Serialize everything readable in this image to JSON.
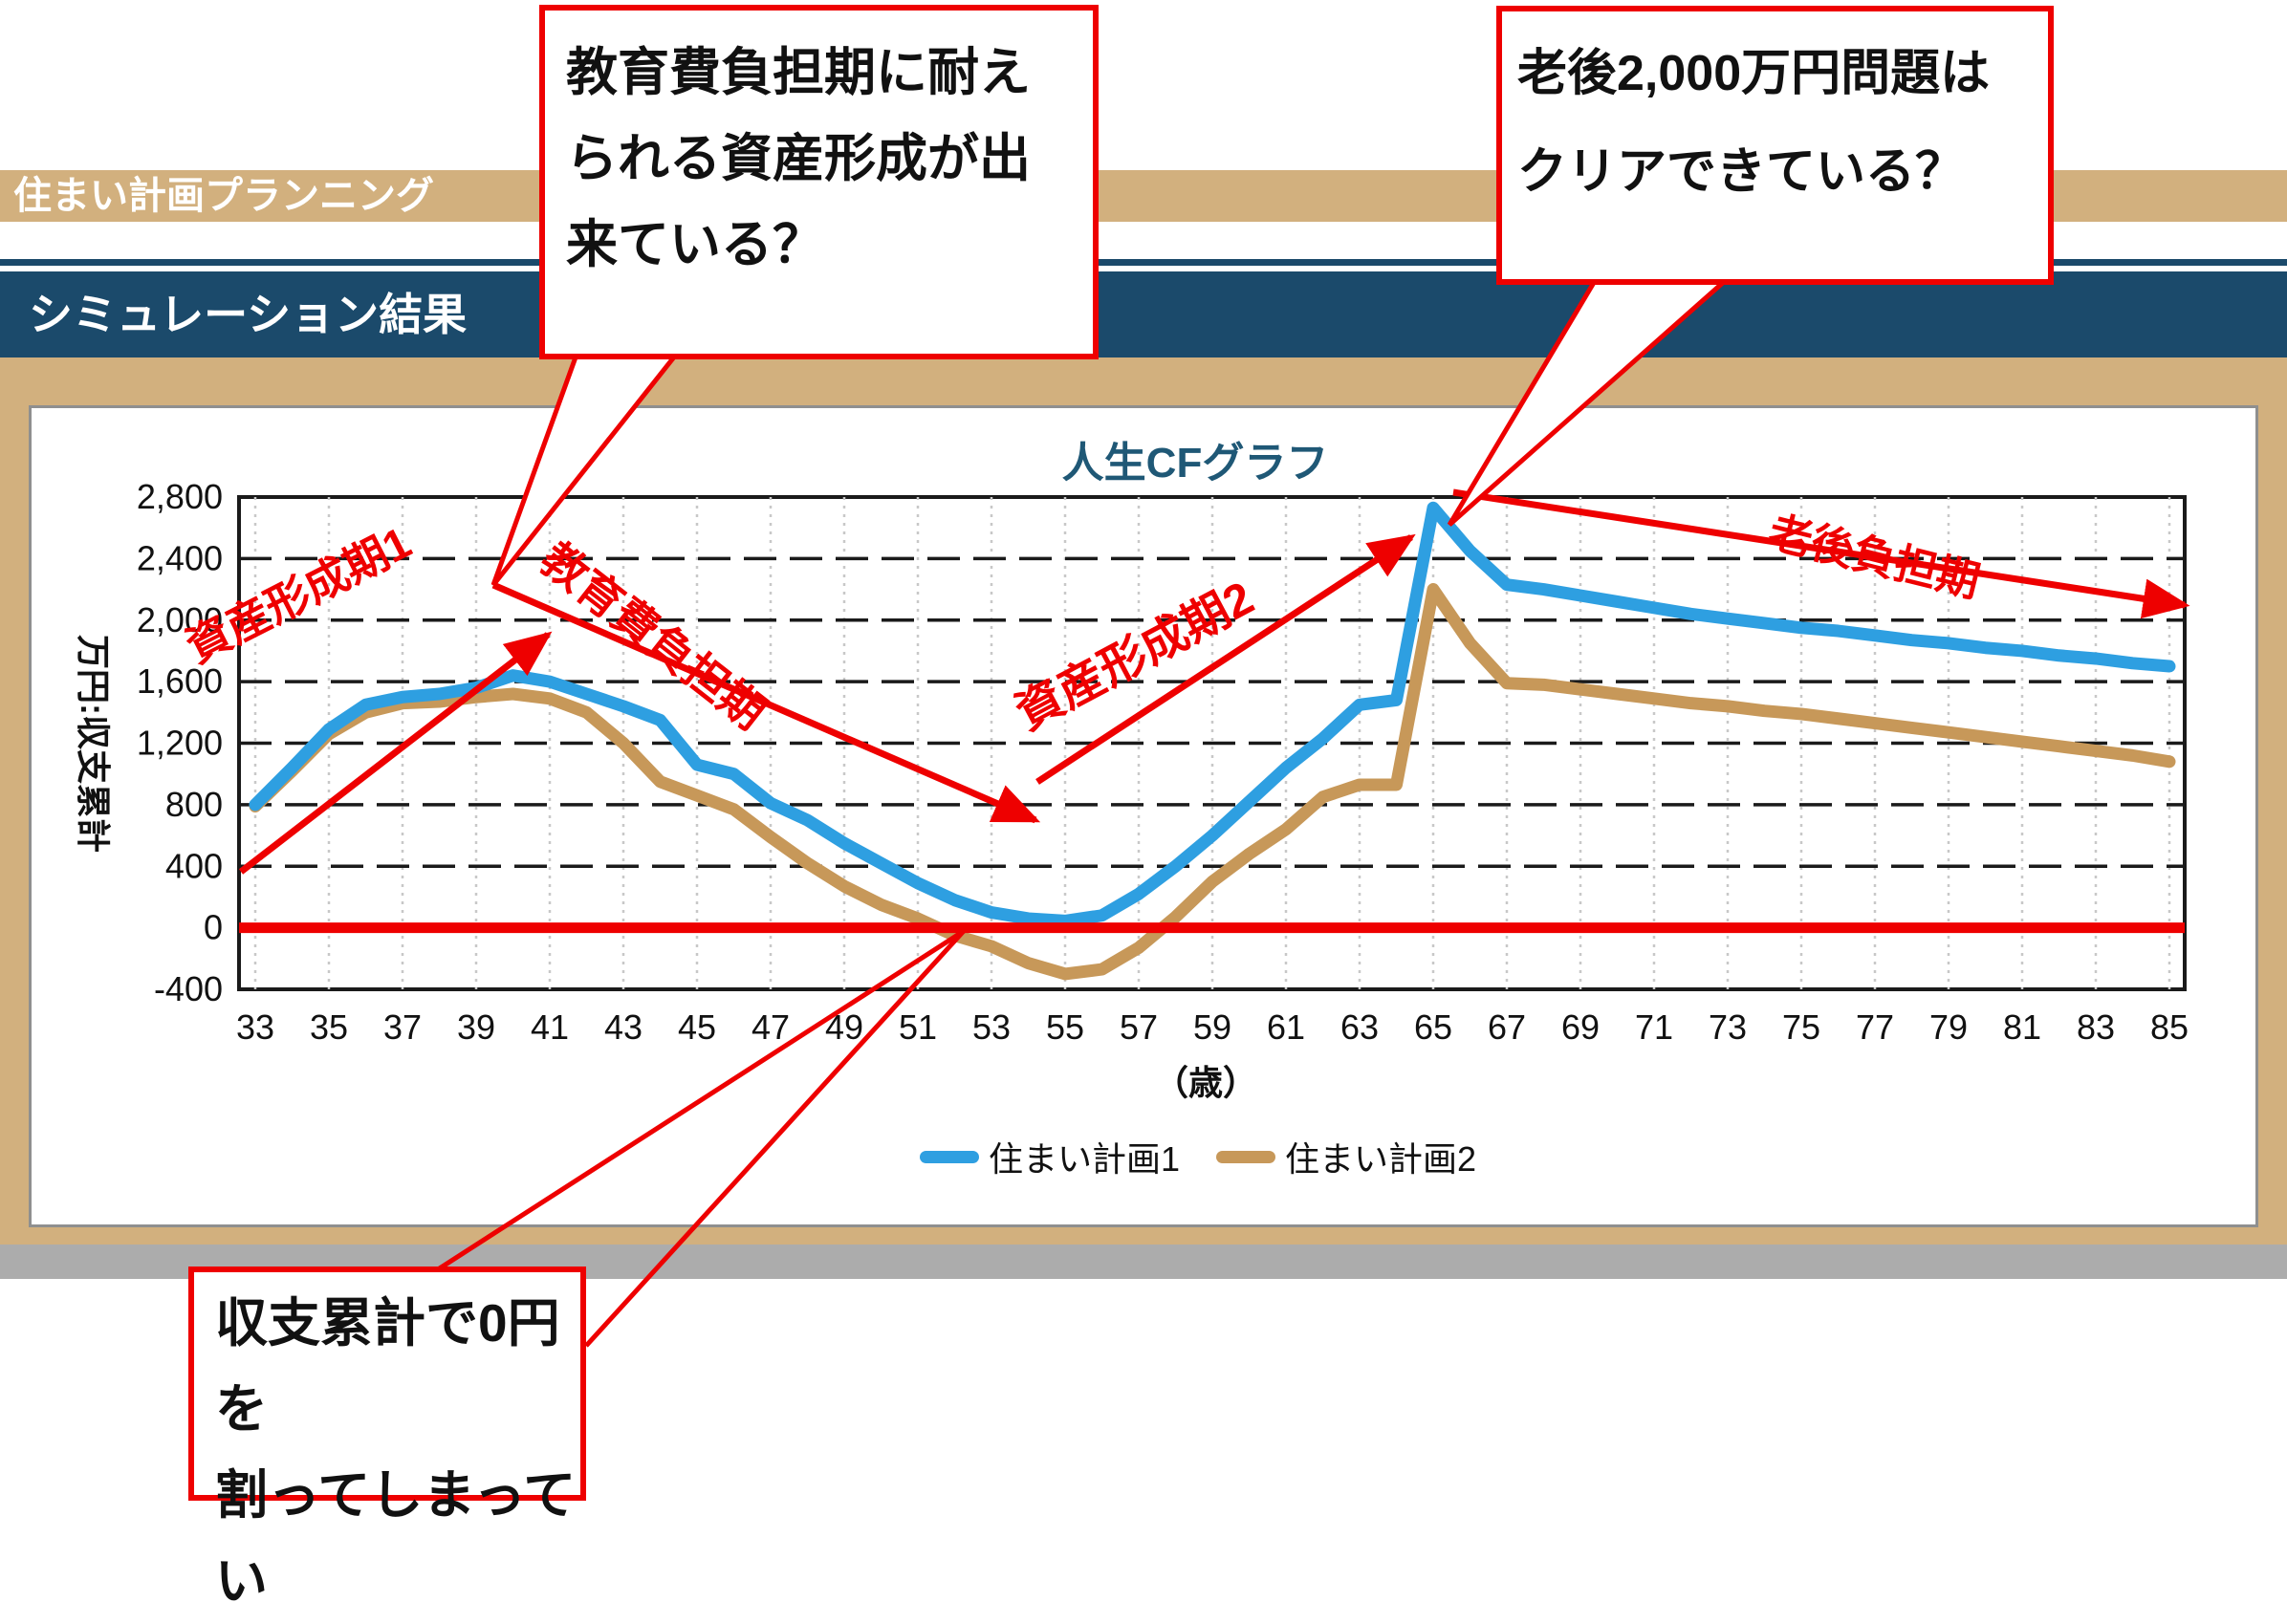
{
  "header": {
    "app_title": "住まい計画プランニング",
    "section_title": "シミュレーション結果"
  },
  "colors": {
    "tan": "#d2b07e",
    "navy": "#1b4a6b",
    "red": "#ee0000",
    "plan1_blue": "#2e9fe1",
    "plan2_tan": "#c79859",
    "grid_black": "#1a1a1a",
    "grid_dotted": "#c8c8c8",
    "card_border": "#8f8f8f",
    "title_blue": "#1f5876"
  },
  "callouts": {
    "education": {
      "lines": [
        "教育費負担期に耐え",
        "られる資産形成が出",
        "来ている？"
      ]
    },
    "retirement": {
      "lines": [
        "老後2,000万円問題は",
        "クリアできている？"
      ]
    },
    "zero": {
      "lines": [
        "収支累計で0円を",
        "割ってしまってい"
      ]
    }
  },
  "chart_data": {
    "type": "line",
    "title": "人生CFグラフ",
    "ylabel": "万円:収支累計",
    "xlabel": "（歳）",
    "ylim": [
      -400,
      2800
    ],
    "yticks": [
      2800,
      2400,
      2000,
      1600,
      1200,
      800,
      400,
      0,
      -400
    ],
    "y_tick_labels": [
      "2,800",
      "2,400",
      "2,000",
      "1,600",
      "1,200",
      "800",
      "400",
      "0",
      "-400"
    ],
    "x_start_age": 33,
    "x_end_age": 85,
    "x_tick_labels": [
      "33",
      "35",
      "37",
      "39",
      "41",
      "43",
      "45",
      "47",
      "49",
      "51",
      "53",
      "55",
      "57",
      "59",
      "61",
      "63",
      "65",
      "67",
      "69",
      "71",
      "73",
      "75",
      "77",
      "79",
      "81",
      "83",
      "85"
    ],
    "zero_line": 0,
    "grid": "on",
    "legend_position": "bottom",
    "series": [
      {
        "name": "住まい計画1",
        "color": "#2e9fe1",
        "values": [
          800,
          1040,
          1290,
          1450,
          1500,
          1520,
          1560,
          1640,
          1600,
          1520,
          1440,
          1350,
          1060,
          1000,
          810,
          700,
          550,
          420,
          290,
          180,
          100,
          60,
          45,
          80,
          220,
          400,
          600,
          820,
          1040,
          1230,
          1450,
          1480,
          2730,
          2450,
          2230,
          2200,
          2160,
          2120,
          2080,
          2040,
          2010,
          1980,
          1950,
          1930,
          1900,
          1870,
          1850,
          1820,
          1800,
          1770,
          1750,
          1720,
          1700
        ]
      },
      {
        "name": "住まい計画2",
        "color": "#c79859",
        "values": [
          790,
          1020,
          1260,
          1400,
          1460,
          1470,
          1500,
          1520,
          1490,
          1400,
          1200,
          950,
          860,
          770,
          590,
          420,
          270,
          150,
          60,
          -50,
          -120,
          -230,
          -300,
          -270,
          -130,
          70,
          300,
          480,
          640,
          850,
          930,
          930,
          2200,
          1850,
          1590,
          1580,
          1550,
          1520,
          1490,
          1460,
          1440,
          1410,
          1390,
          1360,
          1330,
          1300,
          1270,
          1240,
          1210,
          1180,
          1150,
          1120,
          1080
        ]
      }
    ],
    "annotations": {
      "period_labels": [
        "資産形成期1",
        "教育費負担期",
        "資産形成期2",
        "老後負担期"
      ]
    }
  }
}
